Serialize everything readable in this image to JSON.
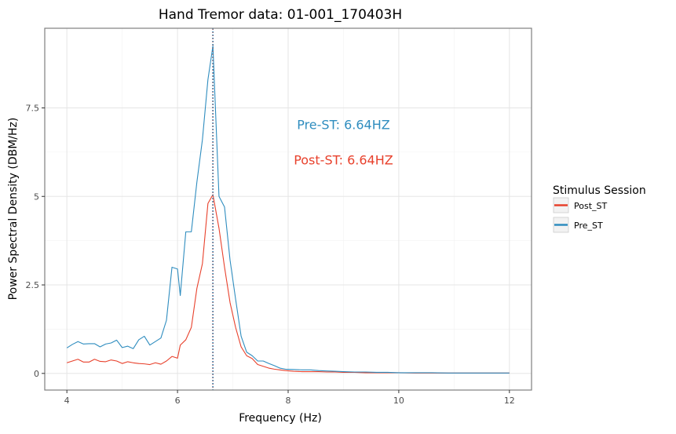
{
  "chart_data": {
    "type": "line",
    "title": "Hand Tremor data: 01-001_170403H",
    "xlabel": "Frequency (Hz)",
    "ylabel": "Power Spectral Density (DBM/Hz)",
    "xlim": [
      3.6,
      12.4
    ],
    "ylim": [
      -0.47,
      9.75
    ],
    "xticks": [
      4,
      6,
      8,
      10,
      12
    ],
    "xtick_labels": [
      "4",
      "6",
      "8",
      "10",
      "12"
    ],
    "yticks": [
      0,
      2.5,
      5,
      7.5
    ],
    "ytick_labels": [
      "0",
      "2.5",
      "5",
      "7.5"
    ],
    "grid": true,
    "legend": {
      "title": "Stimulus Session",
      "position": "right",
      "entries": [
        "Post_ST",
        "Pre_ST"
      ]
    },
    "colors": {
      "Post_ST": "#e8412c",
      "Pre_ST": "#2f8dbf"
    },
    "x": [
      4.0,
      4.1,
      4.2,
      4.3,
      4.4,
      4.5,
      4.6,
      4.7,
      4.8,
      4.9,
      5.0,
      5.1,
      5.2,
      5.3,
      5.4,
      5.5,
      5.6,
      5.7,
      5.8,
      5.9,
      6.0,
      6.05,
      6.15,
      6.25,
      6.35,
      6.45,
      6.55,
      6.64,
      6.75,
      6.85,
      6.95,
      7.05,
      7.15,
      7.25,
      7.35,
      7.45,
      7.55,
      7.65,
      7.75,
      7.85,
      7.95,
      8.1,
      8.25,
      8.4,
      8.55,
      8.7,
      8.85,
      9.0,
      9.2,
      9.4,
      9.6,
      9.8,
      10.0,
      10.3,
      10.6,
      10.9,
      11.2,
      11.5,
      11.8,
      12.0
    ],
    "series": [
      {
        "name": "Post_ST",
        "values": [
          0.3,
          0.35,
          0.4,
          0.32,
          0.32,
          0.4,
          0.34,
          0.33,
          0.38,
          0.35,
          0.28,
          0.33,
          0.3,
          0.28,
          0.27,
          0.25,
          0.3,
          0.26,
          0.35,
          0.48,
          0.43,
          0.8,
          0.95,
          1.3,
          2.4,
          3.1,
          4.8,
          5.05,
          4.1,
          3.0,
          2.0,
          1.3,
          0.75,
          0.5,
          0.42,
          0.25,
          0.2,
          0.15,
          0.12,
          0.1,
          0.08,
          0.06,
          0.05,
          0.05,
          0.05,
          0.04,
          0.04,
          0.03,
          0.03,
          0.02,
          0.02,
          0.02,
          0.02,
          0.01,
          0.01,
          0.01,
          0.01,
          0.01,
          0.01,
          0.01
        ]
      },
      {
        "name": "Pre_ST",
        "values": [
          0.72,
          0.82,
          0.9,
          0.83,
          0.84,
          0.84,
          0.75,
          0.83,
          0.86,
          0.94,
          0.73,
          0.77,
          0.7,
          0.95,
          1.05,
          0.8,
          0.9,
          1.0,
          1.5,
          3.0,
          2.95,
          2.2,
          4.0,
          4.0,
          5.4,
          6.6,
          8.3,
          9.25,
          5.0,
          4.7,
          3.2,
          2.1,
          1.05,
          0.6,
          0.5,
          0.35,
          0.35,
          0.28,
          0.22,
          0.15,
          0.12,
          0.11,
          0.1,
          0.1,
          0.08,
          0.07,
          0.06,
          0.05,
          0.04,
          0.04,
          0.03,
          0.03,
          0.02,
          0.02,
          0.02,
          0.01,
          0.01,
          0.01,
          0.01,
          0.01
        ]
      }
    ],
    "vlines": [
      {
        "series": "Post_ST",
        "x": 6.64,
        "style": "dotted"
      },
      {
        "series": "Pre_ST",
        "x": 6.64,
        "style": "dotted"
      }
    ],
    "annotations": [
      {
        "series": "Pre_ST",
        "text": "Pre-ST:  6.64HZ",
        "x": 9.0,
        "y": 6.9
      },
      {
        "series": "Post_ST",
        "text": "Post-ST:  6.64HZ",
        "x": 9.0,
        "y": 5.9
      }
    ]
  }
}
